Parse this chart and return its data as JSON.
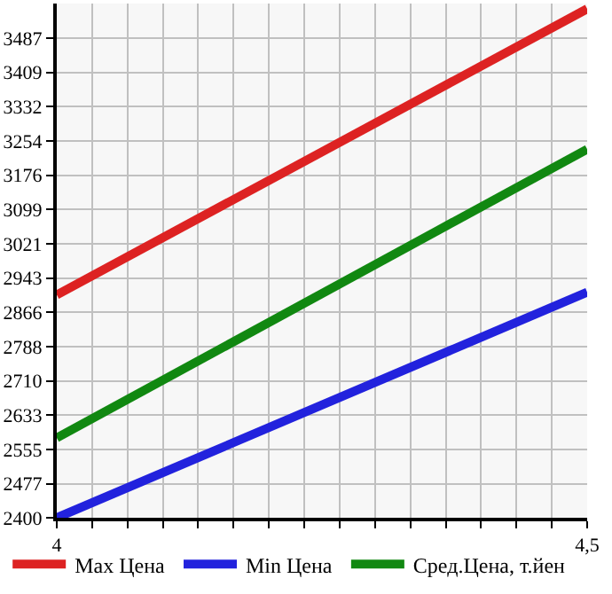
{
  "chart_data": {
    "type": "line",
    "x": [
      4,
      4.5
    ],
    "series": [
      {
        "name": "Max Цена",
        "color": "#dd2222",
        "values": [
          2905,
          3553
        ]
      },
      {
        "name": "Min Цена",
        "color": "#2222dd",
        "values": [
          2400,
          2911
        ]
      },
      {
        "name": "Сред.Цена, т.йен",
        "color": "#118811",
        "values": [
          2581,
          3235
        ]
      }
    ],
    "xlim": [
      4,
      4.5
    ],
    "xticks": [
      {
        "value": 4,
        "label": "4"
      },
      {
        "value": 4.0333,
        "label": null
      },
      {
        "value": 4.0667,
        "label": null
      },
      {
        "value": 4.1,
        "label": null
      },
      {
        "value": 4.1333,
        "label": null
      },
      {
        "value": 4.1667,
        "label": null
      },
      {
        "value": 4.2,
        "label": null
      },
      {
        "value": 4.2333,
        "label": null
      },
      {
        "value": 4.2667,
        "label": null
      },
      {
        "value": 4.3,
        "label": null
      },
      {
        "value": 4.3333,
        "label": null
      },
      {
        "value": 4.3667,
        "label": null
      },
      {
        "value": 4.4,
        "label": null
      },
      {
        "value": 4.4333,
        "label": null
      },
      {
        "value": 4.4667,
        "label": null
      },
      {
        "value": 4.5,
        "label": "4,5"
      }
    ],
    "ylim": [
      2400,
      3565
    ],
    "yticks": [
      2400,
      2477,
      2555,
      2633,
      2710,
      2788,
      2866,
      2943,
      3021,
      3099,
      3176,
      3254,
      3332,
      3409,
      3487
    ],
    "grid": true,
    "legend": "bottom",
    "marker": "none",
    "line_style": "solid"
  }
}
